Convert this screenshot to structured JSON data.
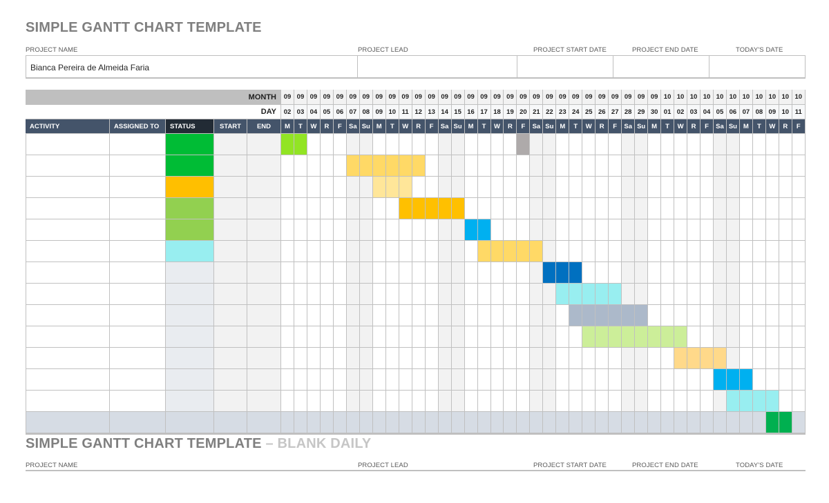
{
  "title": "SIMPLE GANTT CHART TEMPLATE",
  "second_title": {
    "main": "SIMPLE GANTT CHART TEMPLATE",
    "suffix": " – BLANK DAILY"
  },
  "info_labels": {
    "project_name": "PROJECT NAME",
    "project_lead": "PROJECT LEAD",
    "project_start_date": "PROJECT START DATE",
    "project_end_date": "PROJECT END DATE",
    "todays_date": "TODAY'S DATE"
  },
  "info_values": {
    "project_name": "Bianca Pereira de Almeida Faria",
    "project_lead": "",
    "project_start_date": "",
    "project_end_date": "",
    "todays_date": ""
  },
  "grid_labels": {
    "month": "MONTH",
    "day": "DAY"
  },
  "columns": {
    "activity": "ACTIVITY",
    "assigned_to": "ASSIGNED TO",
    "status": "STATUS",
    "start": "START",
    "end": "END"
  },
  "colors": {
    "header_bg": "#44546a",
    "status_header_bg": "#222b35",
    "month_bar": "#bfbfbf",
    "weekend": "#f2f2f2",
    "last_row": "#d6dce4",
    "empty_status": "#e9ecf0"
  },
  "chart_data": {
    "type": "gantt",
    "title": "SIMPLE GANTT CHART TEMPLATE",
    "months": [
      "09",
      "09",
      "09",
      "09",
      "09",
      "09",
      "09",
      "09",
      "09",
      "09",
      "09",
      "09",
      "09",
      "09",
      "09",
      "09",
      "09",
      "09",
      "09",
      "09",
      "09",
      "09",
      "09",
      "09",
      "09",
      "09",
      "09",
      "09",
      "09",
      "10",
      "10",
      "10",
      "10",
      "10",
      "10",
      "10",
      "10",
      "10",
      "10",
      "10"
    ],
    "days": [
      "02",
      "03",
      "04",
      "05",
      "06",
      "07",
      "08",
      "09",
      "10",
      "11",
      "12",
      "13",
      "14",
      "15",
      "16",
      "17",
      "18",
      "19",
      "20",
      "21",
      "22",
      "23",
      "24",
      "25",
      "26",
      "27",
      "28",
      "29",
      "30",
      "01",
      "02",
      "03",
      "04",
      "05",
      "06",
      "07",
      "08",
      "09",
      "10",
      "11"
    ],
    "weekdays": [
      "M",
      "T",
      "W",
      "R",
      "F",
      "Sa",
      "Su",
      "M",
      "T",
      "W",
      "R",
      "F",
      "Sa",
      "Su",
      "M",
      "T",
      "W",
      "R",
      "F",
      "Sa",
      "Su",
      "M",
      "T",
      "W",
      "R",
      "F",
      "Sa",
      "Su",
      "M",
      "T",
      "W",
      "R",
      "F",
      "Sa",
      "Su",
      "M",
      "T",
      "W",
      "R",
      "F"
    ],
    "rows": [
      {
        "activity": "",
        "assigned_to": "",
        "status_color": "#00bc35",
        "start": "",
        "end": "",
        "bars": [
          {
            "from": 0,
            "to": 1,
            "color": "#92e424"
          },
          {
            "from": 18,
            "to": 18,
            "color": "#aeaaaa"
          }
        ]
      },
      {
        "activity": "",
        "assigned_to": "",
        "status_color": "#00bc35",
        "start": "",
        "end": "",
        "bars": [
          {
            "from": 5,
            "to": 10,
            "color": "#ffd966"
          }
        ]
      },
      {
        "activity": "",
        "assigned_to": "",
        "status_color": "#ffbf00",
        "start": "",
        "end": "",
        "bars": [
          {
            "from": 7,
            "to": 9,
            "color": "#ffe699"
          }
        ]
      },
      {
        "activity": "",
        "assigned_to": "",
        "status_color": "#92d050",
        "start": "",
        "end": "",
        "bars": [
          {
            "from": 9,
            "to": 13,
            "color": "#ffc000"
          }
        ]
      },
      {
        "activity": "",
        "assigned_to": "",
        "status_color": "#92d050",
        "start": "",
        "end": "",
        "bars": [
          {
            "from": 14,
            "to": 15,
            "color": "#00b0f0"
          }
        ]
      },
      {
        "activity": "",
        "assigned_to": "",
        "status_color": "#98eef0",
        "start": "",
        "end": "",
        "bars": [
          {
            "from": 15,
            "to": 19,
            "color": "#ffd966"
          }
        ]
      },
      {
        "activity": "",
        "assigned_to": "",
        "status_color": "",
        "start": "",
        "end": "",
        "bars": [
          {
            "from": 20,
            "to": 22,
            "color": "#0070c0"
          }
        ]
      },
      {
        "activity": "",
        "assigned_to": "",
        "status_color": "",
        "start": "",
        "end": "",
        "bars": [
          {
            "from": 21,
            "to": 25,
            "color": "#98eef0"
          }
        ]
      },
      {
        "activity": "",
        "assigned_to": "",
        "status_color": "",
        "start": "",
        "end": "",
        "bars": [
          {
            "from": 22,
            "to": 27,
            "color": "#acb9ca"
          }
        ]
      },
      {
        "activity": "",
        "assigned_to": "",
        "status_color": "",
        "start": "",
        "end": "",
        "bars": [
          {
            "from": 23,
            "to": 30,
            "color": "#ccee99"
          }
        ]
      },
      {
        "activity": "",
        "assigned_to": "",
        "status_color": "",
        "start": "",
        "end": "",
        "bars": [
          {
            "from": 30,
            "to": 33,
            "color": "#ffd98a"
          }
        ]
      },
      {
        "activity": "",
        "assigned_to": "",
        "status_color": "",
        "start": "",
        "end": "",
        "bars": [
          {
            "from": 33,
            "to": 35,
            "color": "#00b0f0"
          }
        ]
      },
      {
        "activity": "",
        "assigned_to": "",
        "status_color": "",
        "start": "",
        "end": "",
        "bars": [
          {
            "from": 34,
            "to": 37,
            "color": "#98eef0"
          }
        ]
      },
      {
        "activity": "",
        "assigned_to": "",
        "status_color": "",
        "start": "",
        "end": "",
        "bars": [
          {
            "from": 37,
            "to": 38,
            "color": "#00b050"
          }
        ]
      }
    ]
  }
}
